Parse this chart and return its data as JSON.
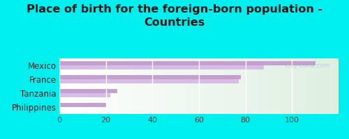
{
  "title": "Place of birth for the foreign-born population -\nCountries",
  "categories": [
    "Mexico",
    "France",
    "Tanzania",
    "Philippines"
  ],
  "values1": [
    110,
    78,
    25,
    20
  ],
  "values2": [
    88,
    77,
    22,
    0
  ],
  "bar_color1": "#c4a0d0",
  "bar_color2": "#d8bce6",
  "background_color": "#00efef",
  "xlim": [
    0,
    120
  ],
  "xticks": [
    0,
    20,
    40,
    60,
    80,
    100
  ],
  "watermark": "  City-Data.com",
  "title_fontsize": 11.5,
  "label_fontsize": 8.5,
  "tick_fontsize": 8,
  "label_color": "#2a2a2a",
  "title_color": "#1a1a1a"
}
